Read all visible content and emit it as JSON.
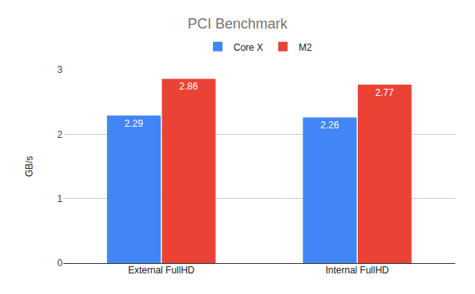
{
  "chart_data": {
    "type": "bar",
    "title": "PCI Benchmark",
    "categories": [
      "External FullHD",
      "Internal FullHD"
    ],
    "series": [
      {
        "name": "Core X",
        "color": "#4285f4",
        "values": [
          2.29,
          2.26
        ]
      },
      {
        "name": "M2",
        "color": "#ea4335",
        "values": [
          2.86,
          2.77
        ]
      }
    ],
    "y_label": "GB/s",
    "ylim": [
      0,
      3
    ],
    "yticks": [
      0,
      1,
      2,
      3
    ],
    "grid": true,
    "legend": "top",
    "data_labels": true
  }
}
